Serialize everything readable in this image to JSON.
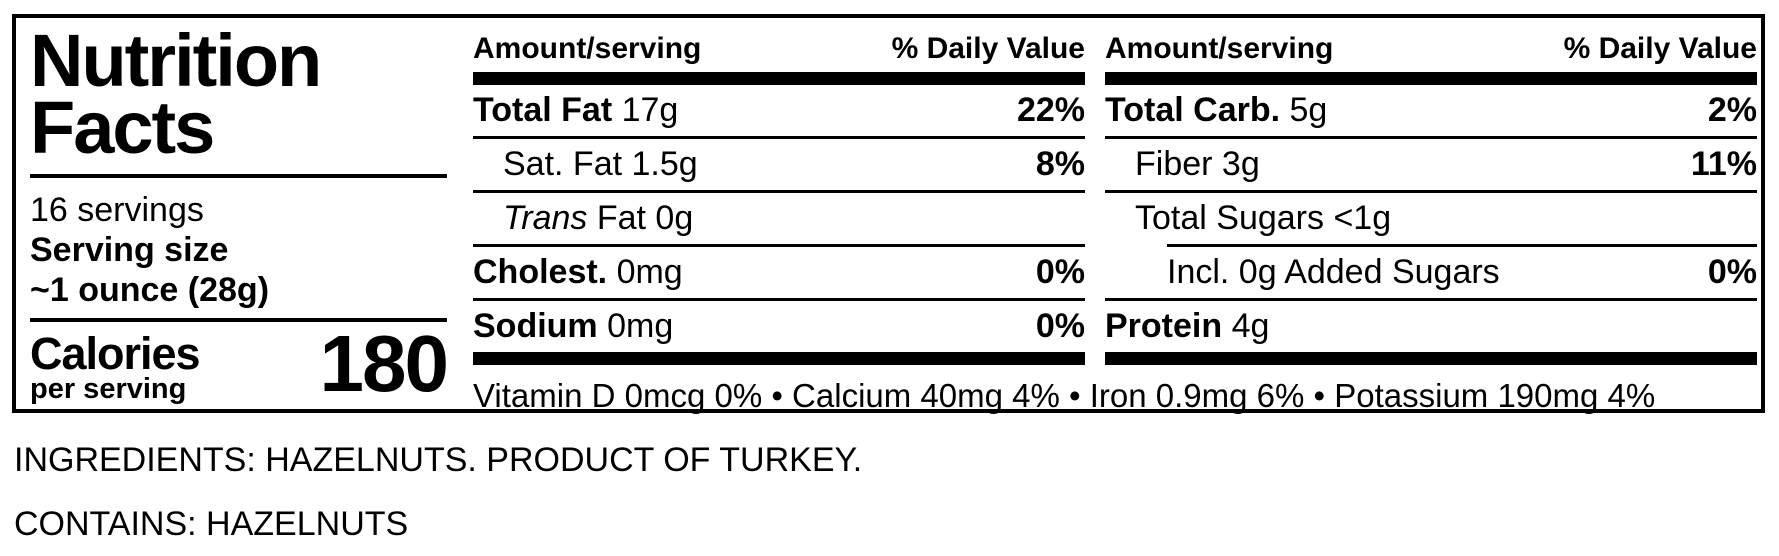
{
  "nutrition_label": {
    "title": [
      "Nutrition",
      "Facts"
    ],
    "servings": "16 servings",
    "serving_size_label": "Serving size",
    "serving_size_value": "~1 ounce (28g)",
    "calories_label": "Calories",
    "calories_sublabel": "per serving",
    "calories_value": "180",
    "columns": [
      {
        "key": "left",
        "header_amount": "Amount/serving",
        "header_dv": "% Daily Value",
        "rows": [
          {
            "key": "total-fat",
            "segments": [
              {
                "text": "Total Fat",
                "bold": true
              },
              {
                "text": " 17g"
              }
            ],
            "dv": "22%",
            "indent": 0,
            "rule_above": "none"
          },
          {
            "key": "sat-fat",
            "segments": [
              {
                "text": "Sat. Fat 1.5g"
              }
            ],
            "dv": "8%",
            "indent": 1,
            "rule_above": "full"
          },
          {
            "key": "trans-fat",
            "segments": [
              {
                "text": "Trans",
                "italic": true
              },
              {
                "text": " Fat 0g"
              }
            ],
            "dv": "",
            "indent": 1,
            "rule_above": "full"
          },
          {
            "key": "cholesterol",
            "segments": [
              {
                "text": "Cholest.",
                "bold": true
              },
              {
                "text": " 0mg"
              }
            ],
            "dv": "0%",
            "indent": 0,
            "rule_above": "full"
          },
          {
            "key": "sodium",
            "segments": [
              {
                "text": "Sodium",
                "bold": true
              },
              {
                "text": " 0mg"
              }
            ],
            "dv": "0%",
            "indent": 0,
            "rule_above": "full"
          }
        ]
      },
      {
        "key": "right",
        "header_amount": "Amount/serving",
        "header_dv": "% Daily Value",
        "rows": [
          {
            "key": "total-carb",
            "segments": [
              {
                "text": "Total Carb.",
                "bold": true
              },
              {
                "text": " 5g"
              }
            ],
            "dv": "2%",
            "indent": 0,
            "rule_above": "none"
          },
          {
            "key": "fiber",
            "segments": [
              {
                "text": "Fiber 3g"
              }
            ],
            "dv": "11%",
            "indent": 1,
            "rule_above": "full"
          },
          {
            "key": "total-sugars",
            "segments": [
              {
                "text": "Total Sugars <1g"
              }
            ],
            "dv": "",
            "indent": 1,
            "rule_above": "full"
          },
          {
            "key": "added-sugars",
            "segments": [
              {
                "text": "Incl. 0g Added Sugars"
              }
            ],
            "dv": "0%",
            "indent": 2,
            "rule_above": "indented"
          },
          {
            "key": "protein",
            "segments": [
              {
                "text": "Protein",
                "bold": true
              },
              {
                "text": " 4g"
              }
            ],
            "dv": "",
            "indent": 0,
            "rule_above": "full"
          }
        ]
      }
    ],
    "micronutrients": [
      {
        "name": "Vitamin D",
        "amount": "0mcg",
        "dv": "0%"
      },
      {
        "name": "Calcium",
        "amount": "40mg",
        "dv": "4%"
      },
      {
        "name": "Iron",
        "amount": "0.9mg",
        "dv": "6%"
      },
      {
        "name": "Potassium",
        "amount": "190mg",
        "dv": "4%"
      }
    ],
    "micronutrient_separator": " • "
  },
  "footer": {
    "ingredients": "INGREDIENTS: HAZELNUTS. PRODUCT OF TURKEY.",
    "contains": "CONTAINS: HAZELNUTS"
  },
  "colors": {
    "ink": "#000000",
    "background": "#ffffff"
  }
}
